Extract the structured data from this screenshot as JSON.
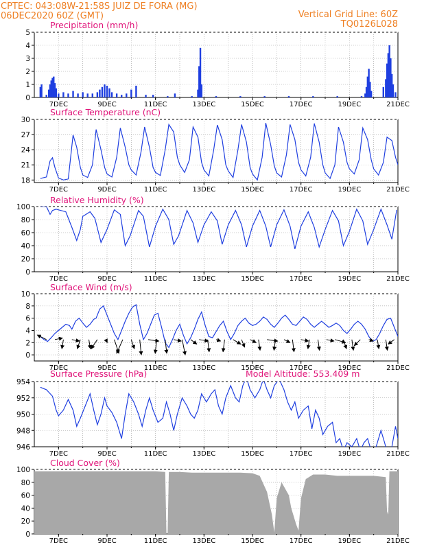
{
  "header": {
    "line1_left": "CPTEC:   043:08W-21:58S   JUIZ DE FORA (MG)",
    "line2_left": "06DEC2020 60Z (GMT)",
    "line1_right": "Vertical Grid Line: 60Z",
    "line2_right": "TQ0126L028"
  },
  "colors": {
    "header": "#ee7f22",
    "title": "#e0157a",
    "series": "#1f3fe0",
    "cloud": "#a8a8a8",
    "grid": "#9a9a9a",
    "arrow": "#000000"
  },
  "x_labels": [
    "7DEC",
    "9DEC",
    "11DEC",
    "13DEC",
    "15DEC",
    "17DEC",
    "19DEC",
    "21DEC"
  ],
  "chart_data": [
    {
      "type": "bar",
      "title": "Precipitation (mm/h)",
      "ylim": [
        0,
        5
      ],
      "yticks": [
        0,
        1,
        2,
        3,
        4,
        5
      ],
      "x_range_days": [
        6.25,
        21.0
      ],
      "x_unit": "day of December 2020",
      "x": [
        6.25,
        6.3,
        6.5,
        6.6,
        6.65,
        6.7,
        6.75,
        6.8,
        6.85,
        6.9,
        7.0,
        7.2,
        7.4,
        7.6,
        7.8,
        8.0,
        8.2,
        8.4,
        8.6,
        8.7,
        8.8,
        8.9,
        9.0,
        9.1,
        9.2,
        9.4,
        9.6,
        9.8,
        10.0,
        10.2,
        10.6,
        10.9,
        11.5,
        11.8,
        12.5,
        12.75,
        12.8,
        12.85,
        12.9,
        13.5,
        14.5,
        15.5,
        16.5,
        17.5,
        18.5,
        19.5,
        19.65,
        19.7,
        19.75,
        19.8,
        19.85,
        19.9,
        20.4,
        20.5,
        20.55,
        20.6,
        20.65,
        20.7,
        20.75,
        20.8,
        20.9
      ],
      "values": [
        0.8,
        1.0,
        0.2,
        0.6,
        1.0,
        1.3,
        1.5,
        1.6,
        1.1,
        0.7,
        0.3,
        0.4,
        0.3,
        0.5,
        0.3,
        0.4,
        0.3,
        0.3,
        0.4,
        0.6,
        0.8,
        1.0,
        0.9,
        0.7,
        0.4,
        0.3,
        0.2,
        0.3,
        0.6,
        0.9,
        0.2,
        0.2,
        0.1,
        0.3,
        0.1,
        0.6,
        2.4,
        3.8,
        1.0,
        0.1,
        0.1,
        0.1,
        0.1,
        0.1,
        0.1,
        0.1,
        0.3,
        0.8,
        1.6,
        2.2,
        1.2,
        0.5,
        0.8,
        1.4,
        2.6,
        3.4,
        4.0,
        3.0,
        1.8,
        1.0,
        0.4
      ]
    },
    {
      "type": "line",
      "title": "Surface Temperature (nC)",
      "ylim": [
        17.5,
        30
      ],
      "yticks": [
        18,
        21,
        24,
        27,
        30
      ],
      "x": [
        6.25,
        6.5,
        6.65,
        6.75,
        6.85,
        7.0,
        7.2,
        7.4,
        7.6,
        7.75,
        7.9,
        8.0,
        8.2,
        8.4,
        8.55,
        8.75,
        8.9,
        9.0,
        9.2,
        9.4,
        9.55,
        9.75,
        9.9,
        10.0,
        10.2,
        10.4,
        10.55,
        10.75,
        10.9,
        11.0,
        11.2,
        11.4,
        11.55,
        11.75,
        11.9,
        12.0,
        12.2,
        12.4,
        12.55,
        12.75,
        12.9,
        13.0,
        13.2,
        13.4,
        13.55,
        13.75,
        13.9,
        14.0,
        14.2,
        14.4,
        14.55,
        14.75,
        14.9,
        15.0,
        15.2,
        15.4,
        15.55,
        15.75,
        15.9,
        16.0,
        16.2,
        16.4,
        16.55,
        16.75,
        16.9,
        17.0,
        17.2,
        17.4,
        17.55,
        17.75,
        17.9,
        18.0,
        18.2,
        18.4,
        18.55,
        18.75,
        18.9,
        19.0,
        19.2,
        19.4,
        19.55,
        19.75,
        19.9,
        20.0,
        20.2,
        20.4,
        20.55,
        20.75,
        20.9,
        21.0
      ],
      "values": [
        18.3,
        18.6,
        21.8,
        22.4,
        20.5,
        18.4,
        18.0,
        18.2,
        26.9,
        24.5,
        20.5,
        19.0,
        18.5,
        21.0,
        28.0,
        24.0,
        20.5,
        19.2,
        18.6,
        22.5,
        28.3,
        24.5,
        21.0,
        20.0,
        19.0,
        23.5,
        28.5,
        24.5,
        20.5,
        19.5,
        18.9,
        24.0,
        29.0,
        27.5,
        22.5,
        21.0,
        19.5,
        22.0,
        28.5,
        26.5,
        21.5,
        20.0,
        18.8,
        24.0,
        28.9,
        26.0,
        21.0,
        19.8,
        18.5,
        24.0,
        29.0,
        25.5,
        20.5,
        19.2,
        18.0,
        22.5,
        29.3,
        25.0,
        20.8,
        19.4,
        18.6,
        23.0,
        29.0,
        26.0,
        21.5,
        20.0,
        18.8,
        22.5,
        29.2,
        25.5,
        21.0,
        19.4,
        18.3,
        21.0,
        28.5,
        25.5,
        21.5,
        20.2,
        19.2,
        22.0,
        28.3,
        26.0,
        22.0,
        20.2,
        19.0,
        21.5,
        26.5,
        25.8,
        22.5,
        21.0
      ]
    },
    {
      "type": "line",
      "title": "Relative Humidity (%)",
      "ylim": [
        0,
        100
      ],
      "yticks": [
        0,
        20,
        40,
        60,
        80,
        100
      ],
      "x": [
        6.25,
        6.5,
        6.65,
        6.75,
        6.9,
        7.0,
        7.3,
        7.55,
        7.75,
        7.9,
        8.0,
        8.3,
        8.5,
        8.75,
        9.0,
        9.3,
        9.55,
        9.75,
        9.95,
        10.3,
        10.5,
        10.75,
        11.0,
        11.3,
        11.55,
        11.75,
        11.95,
        12.3,
        12.55,
        12.75,
        13.0,
        13.3,
        13.55,
        13.75,
        14.0,
        14.3,
        14.55,
        14.75,
        15.0,
        15.3,
        15.55,
        15.75,
        16.0,
        16.3,
        16.55,
        16.75,
        17.0,
        17.3,
        17.55,
        17.75,
        18.0,
        18.3,
        18.55,
        18.75,
        19.0,
        19.3,
        19.55,
        19.75,
        20.0,
        20.3,
        20.55,
        20.75,
        20.95
      ],
      "values": [
        100,
        100,
        88,
        94,
        96,
        95,
        92,
        68,
        48,
        65,
        85,
        92,
        82,
        45,
        65,
        95,
        88,
        40,
        55,
        94,
        85,
        38,
        70,
        96,
        80,
        42,
        55,
        94,
        75,
        45,
        72,
        92,
        78,
        42,
        72,
        94,
        72,
        38,
        70,
        94,
        70,
        38,
        72,
        95,
        70,
        35,
        70,
        92,
        68,
        38,
        65,
        94,
        78,
        40,
        62,
        96,
        78,
        42,
        65,
        96,
        72,
        50,
        95
      ]
    },
    {
      "type": "line",
      "title": "Surface Wind (m/s)",
      "ylim": [
        -1,
        10
      ],
      "yticks": [
        0,
        2,
        4,
        6,
        8,
        10
      ],
      "x": [
        6.25,
        6.4,
        6.55,
        6.7,
        6.85,
        7.0,
        7.15,
        7.3,
        7.45,
        7.55,
        7.7,
        7.85,
        8.0,
        8.15,
        8.3,
        8.45,
        8.55,
        8.7,
        8.85,
        9.0,
        9.15,
        9.3,
        9.45,
        9.6,
        9.75,
        9.9,
        10.05,
        10.2,
        10.35,
        10.5,
        10.65,
        10.8,
        10.95,
        11.1,
        11.25,
        11.4,
        11.55,
        11.7,
        11.85,
        12.0,
        12.15,
        12.3,
        12.45,
        12.6,
        12.75,
        12.9,
        13.05,
        13.2,
        13.35,
        13.5,
        13.65,
        13.8,
        13.95,
        14.1,
        14.25,
        14.4,
        14.55,
        14.7,
        14.85,
        15.0,
        15.15,
        15.3,
        15.45,
        15.6,
        15.75,
        15.9,
        16.05,
        16.2,
        16.35,
        16.5,
        16.65,
        16.8,
        16.95,
        17.1,
        17.25,
        17.4,
        17.55,
        17.7,
        17.85,
        18.0,
        18.15,
        18.3,
        18.45,
        18.6,
        18.75,
        18.9,
        19.05,
        19.2,
        19.35,
        19.5,
        19.65,
        19.8,
        19.95,
        20.1,
        20.25,
        20.4,
        20.55,
        20.7,
        20.85,
        21.0
      ],
      "values": [
        3.0,
        2.5,
        2.2,
        2.8,
        3.5,
        4.0,
        4.5,
        5.0,
        4.8,
        4.2,
        5.5,
        6.0,
        5.2,
        4.5,
        5.0,
        5.8,
        6.0,
        7.5,
        8.0,
        6.5,
        5.0,
        3.5,
        2.5,
        4.0,
        5.5,
        6.8,
        7.8,
        8.2,
        5.0,
        2.5,
        3.5,
        5.0,
        6.5,
        6.8,
        4.5,
        2.0,
        1.2,
        2.5,
        4.0,
        5.0,
        3.2,
        1.8,
        2.8,
        4.2,
        5.8,
        7.0,
        4.8,
        3.0,
        2.8,
        3.8,
        4.8,
        5.5,
        3.8,
        2.5,
        3.5,
        4.8,
        5.5,
        6.0,
        5.2,
        4.8,
        5.0,
        5.5,
        6.2,
        5.8,
        5.0,
        4.5,
        5.2,
        6.0,
        6.5,
        5.8,
        5.0,
        4.8,
        5.5,
        6.2,
        5.8,
        5.0,
        4.5,
        5.0,
        5.5,
        5.0,
        4.5,
        4.8,
        5.2,
        4.8,
        4.0,
        3.5,
        4.2,
        5.0,
        5.5,
        5.0,
        4.2,
        3.0,
        2.2,
        2.5,
        3.5,
        4.8,
        5.8,
        6.0,
        4.5,
        3.0
      ]
    },
    {
      "type": "line",
      "title": "Surface Pressure (hPa)",
      "annotation": "Model Altitude: 553.409  m",
      "ylim": [
        946,
        954
      ],
      "yticks": [
        946,
        948,
        950,
        952,
        954
      ],
      "x": [
        6.25,
        6.5,
        6.75,
        6.9,
        7.0,
        7.2,
        7.4,
        7.6,
        7.75,
        7.9,
        8.1,
        8.3,
        8.45,
        8.6,
        8.75,
        8.9,
        9.0,
        9.2,
        9.4,
        9.6,
        9.75,
        9.9,
        10.1,
        10.3,
        10.45,
        10.6,
        10.75,
        10.9,
        11.1,
        11.3,
        11.45,
        11.6,
        11.75,
        11.9,
        12.1,
        12.3,
        12.45,
        12.6,
        12.75,
        12.9,
        13.1,
        13.3,
        13.45,
        13.6,
        13.75,
        13.9,
        14.1,
        14.3,
        14.45,
        14.6,
        14.75,
        14.9,
        15.1,
        15.3,
        15.45,
        15.6,
        15.75,
        15.9,
        16.1,
        16.3,
        16.45,
        16.6,
        16.75,
        16.9,
        17.1,
        17.3,
        17.45,
        17.6,
        17.75,
        17.9,
        18.1,
        18.3,
        18.45,
        18.6,
        18.75,
        18.9,
        19.1,
        19.3,
        19.45,
        19.6,
        19.75,
        19.9,
        20.1,
        20.3,
        20.45,
        20.6,
        20.75,
        20.9,
        21.0
      ],
      "values": [
        953.3,
        953.0,
        952.2,
        950.5,
        949.8,
        950.5,
        951.8,
        950.5,
        948.5,
        949.5,
        951.0,
        952.5,
        950.5,
        948.7,
        950.0,
        952.0,
        951.0,
        950.2,
        949.0,
        947.0,
        950.0,
        952.5,
        951.5,
        950.0,
        948.5,
        950.5,
        952.0,
        950.5,
        949.0,
        949.5,
        951.5,
        950.0,
        948.0,
        950.0,
        952.0,
        951.0,
        950.0,
        949.5,
        950.5,
        952.5,
        951.5,
        952.5,
        953.0,
        951.0,
        950.0,
        952.0,
        953.5,
        952.0,
        951.5,
        953.5,
        954.5,
        953.0,
        952.0,
        953.0,
        954.3,
        953.0,
        952.0,
        953.5,
        954.3,
        953.0,
        951.5,
        950.5,
        951.5,
        949.5,
        950.5,
        951.0,
        948.2,
        950.5,
        949.5,
        947.5,
        948.5,
        949.0,
        946.5,
        947.0,
        945.5,
        946.5,
        946.0,
        947.0,
        945.5,
        946.5,
        947.0,
        945.5,
        946.0,
        948.0,
        946.5,
        944.8,
        946.0,
        948.5,
        947.0
      ]
    },
    {
      "type": "area",
      "title": "Cloud Cover (%)",
      "ylim": [
        0,
        100
      ],
      "yticks": [
        0,
        20,
        40,
        60,
        80,
        100
      ],
      "x": [
        6.0,
        6.5,
        7.0,
        7.5,
        8.0,
        8.5,
        9.0,
        9.5,
        10.0,
        10.5,
        11.0,
        11.4,
        11.45,
        11.5,
        11.55,
        12.0,
        12.5,
        13.0,
        13.5,
        14.0,
        14.5,
        15.0,
        15.3,
        15.6,
        15.8,
        15.9,
        16.0,
        16.2,
        16.5,
        16.6,
        16.8,
        16.9,
        17.0,
        17.2,
        17.5,
        18.0,
        18.5,
        19.0,
        19.5,
        20.0,
        20.5,
        20.55,
        20.6,
        20.65,
        21.0
      ],
      "values": [
        97,
        97,
        97,
        97,
        97,
        97,
        97,
        97,
        97,
        97,
        97,
        96,
        0,
        0,
        96,
        96,
        95,
        95,
        95,
        95,
        95,
        94,
        90,
        65,
        30,
        2,
        55,
        80,
        60,
        40,
        15,
        5,
        55,
        85,
        92,
        92,
        90,
        90,
        90,
        90,
        88,
        35,
        30,
        97,
        97
      ]
    }
  ],
  "wind_arrows": {
    "x": [
      6.5,
      6.85,
      7.2,
      7.55,
      7.9,
      8.25,
      8.6,
      8.95,
      9.3,
      9.65,
      10.0,
      10.35,
      10.7,
      11.05,
      11.4,
      11.75,
      12.1,
      12.45,
      12.8,
      13.15,
      13.5,
      13.85,
      14.2,
      14.55,
      14.9,
      15.25,
      15.6,
      15.95,
      16.3,
      16.65,
      17.0,
      17.35,
      17.7,
      18.05,
      18.4,
      18.75,
      19.1,
      19.45,
      19.8,
      20.15,
      20.5,
      20.85
    ],
    "u": [
      -3.0,
      2.5,
      -0.5,
      2.5,
      -1.0,
      0.5,
      -2.0,
      0.5,
      1.5,
      -2.0,
      1.0,
      0.5,
      3.5,
      -0.5,
      0.5,
      2.5,
      1.0,
      2.0,
      3.0,
      0.5,
      1.5,
      -0.5,
      2.5,
      1.0,
      2.0,
      0.5,
      3.5,
      -0.5,
      2.0,
      0.5,
      2.5,
      -0.5,
      0.5,
      2.5,
      3.5,
      1.0,
      0.5,
      -2.0,
      1.5,
      0.5,
      0.5,
      -2.0
    ],
    "v": [
      -1.5,
      -0.5,
      3.0,
      0.5,
      3.0,
      3.0,
      3.0,
      1.0,
      4.5,
      4.5,
      3.0,
      5.0,
      0.5,
      4.5,
      4.5,
      0.5,
      5.0,
      1.5,
      0.5,
      4.0,
      0.5,
      4.0,
      1.5,
      2.5,
      1.0,
      3.5,
      0.5,
      3.5,
      1.0,
      4.0,
      0.5,
      3.0,
      3.5,
      0.5,
      1.0,
      3.0,
      3.5,
      2.0,
      0.5,
      3.0,
      3.5,
      1.5
    ]
  }
}
